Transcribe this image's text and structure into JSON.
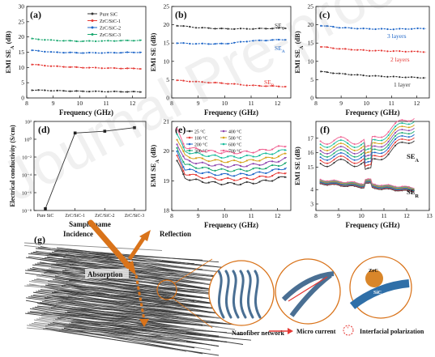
{
  "chart_data": [
    {
      "panel": "(a)",
      "type": "line",
      "xlabel": "Frequency (GHz)",
      "ylabel": "EMI SE_A (dB)",
      "xlim": [
        8,
        12.5
      ],
      "ylim": [
        0,
        30
      ],
      "xticks": [
        8,
        9,
        10,
        11,
        12
      ],
      "yticks": [
        0,
        5,
        10,
        15,
        20,
        25,
        30
      ],
      "legend": "top-right",
      "series": [
        {
          "name": "Pure SiC",
          "color": "#333333",
          "x": [
            8.2,
            9,
            10,
            11,
            12.4
          ],
          "values": [
            2.6,
            2.4,
            2.2,
            2.1,
            2.0
          ]
        },
        {
          "name": "ZrC/SiC-1",
          "color": "#e53935",
          "x": [
            8.2,
            9,
            10,
            11,
            12.4
          ],
          "values": [
            11.0,
            10.4,
            10.0,
            9.8,
            9.6
          ]
        },
        {
          "name": "ZrC/SiC-2",
          "color": "#1e66c8",
          "x": [
            8.2,
            9,
            10,
            11,
            12.4
          ],
          "values": [
            15.6,
            15.0,
            14.8,
            14.8,
            15.0
          ]
        },
        {
          "name": "ZrC/SiC-3",
          "color": "#1aa870",
          "x": [
            8.2,
            9,
            10,
            11,
            12.4
          ],
          "values": [
            19.4,
            18.9,
            18.6,
            18.7,
            18.9
          ]
        }
      ]
    },
    {
      "panel": "(b)",
      "type": "line",
      "xlabel": "Frequency (GHz)",
      "ylabel": "EMI SE (dB)",
      "xlim": [
        8,
        12.5
      ],
      "ylim": [
        0,
        25
      ],
      "xticks": [
        8,
        9,
        10,
        11,
        12
      ],
      "yticks": [
        0,
        5,
        10,
        15,
        20,
        25
      ],
      "series": [
        {
          "name": "SE_T",
          "color": "#333333",
          "x": [
            8.2,
            9,
            10,
            11,
            12.4
          ],
          "values": [
            19.8,
            19.2,
            18.9,
            18.9,
            19.1
          ]
        },
        {
          "name": "SE_A",
          "color": "#1e66c8",
          "x": [
            8.2,
            9,
            10,
            11,
            12.4
          ],
          "values": [
            15.0,
            14.8,
            14.8,
            15.6,
            16.0
          ]
        },
        {
          "name": "SE_R",
          "color": "#e53935",
          "x": [
            8.2,
            9,
            10,
            11,
            12.4
          ],
          "values": [
            4.8,
            4.4,
            4.0,
            3.4,
            3.1
          ]
        }
      ]
    },
    {
      "panel": "(c)",
      "type": "line",
      "xlabel": "Frequency (GHz)",
      "ylabel": "EMI SE_A (dB)",
      "xlim": [
        8,
        12.5
      ],
      "ylim": [
        0,
        25
      ],
      "xticks": [
        8,
        9,
        10,
        11,
        12
      ],
      "yticks": [
        0,
        5,
        10,
        15,
        20,
        25
      ],
      "series": [
        {
          "name": "3 layers",
          "color": "#1e66c8",
          "x": [
            8.2,
            9,
            10,
            11,
            12.4
          ],
          "values": [
            19.8,
            19.2,
            18.9,
            18.8,
            19.0
          ]
        },
        {
          "name": "2 layers",
          "color": "#e53935",
          "x": [
            8.2,
            9,
            10,
            11,
            12.4
          ],
          "values": [
            14.0,
            13.4,
            13.0,
            12.8,
            12.6
          ]
        },
        {
          "name": "1 layer",
          "color": "#333333",
          "x": [
            8.2,
            9,
            10,
            11,
            12.4
          ],
          "values": [
            7.2,
            6.6,
            6.1,
            5.8,
            5.5
          ]
        }
      ]
    },
    {
      "panel": "(d)",
      "type": "line",
      "xlabel": "Sample name",
      "ylabel": "Electrical conductivity (S/cm)",
      "categories": [
        "Pure SiC",
        "ZrC/SiC-1",
        "ZrC/SiC-2",
        "ZrC/SiC-3"
      ],
      "y_scale": "log",
      "ylim_exp": [
        -8,
        2
      ],
      "ytick_labels": [
        "10⁻⁸",
        "10⁻⁶",
        "10⁻⁴",
        "10⁻²",
        "10⁰",
        "10²"
      ],
      "series": [
        {
          "color": "#333333",
          "values_exp": [
            -7.8,
            0.7,
            0.9,
            1.3
          ]
        }
      ]
    },
    {
      "panel": "(e)",
      "type": "line",
      "xlabel": "Frequency (GHz)",
      "ylabel": "EMI SE_A (dB)",
      "xlim": [
        8,
        12.5
      ],
      "ylim": [
        18,
        21
      ],
      "xticks": [
        8,
        9,
        10,
        11,
        12
      ],
      "yticks": [
        18,
        19,
        20,
        21
      ],
      "legend": "top-left",
      "series": [
        {
          "name": "25 °C",
          "color": "#333333",
          "base": 18.8
        },
        {
          "name": "100 °C",
          "color": "#e53935",
          "base": 18.95
        },
        {
          "name": "200 °C",
          "color": "#1e66c8",
          "base": 19.1
        },
        {
          "name": "300 °C",
          "color": "#1aa870",
          "base": 19.25
        },
        {
          "name": "400 °C",
          "color": "#8e44ad",
          "base": 19.4
        },
        {
          "name": "500 °C",
          "color": "#d4a017",
          "base": 19.55
        },
        {
          "name": "600 °C",
          "color": "#1abc9c",
          "base": 19.7
        },
        {
          "name": "700 °C",
          "color": "#f06292",
          "base": 19.85
        }
      ]
    },
    {
      "panel": "(f)",
      "type": "line",
      "xlabel": "Frequency (GHz)",
      "ylabel": "EMI SE (dB)",
      "xlim": [
        8,
        13
      ],
      "xticks": [
        8,
        9,
        10,
        11,
        12,
        13
      ],
      "ytick_labels_top": [
        "15",
        "16",
        "17"
      ],
      "ytick_labels_bottom": [
        "3",
        "4"
      ],
      "annotations": [
        "SE_A",
        "SE_R"
      ]
    }
  ],
  "figure": {
    "panel_labels": [
      "(a)",
      "(b)",
      "(c)",
      "(d)",
      "(e)",
      "(f)",
      "(g)"
    ],
    "schematic": {
      "incidence": "Incidence",
      "reflection": "Reflection",
      "absorption": "Absorption",
      "nanofiber_network": "Nanofiber network",
      "micro_current": "Micro current",
      "interfacial_polarization": "Interfacial polarization",
      "zrc": "ZrC",
      "sic": "SiC"
    },
    "watermark": "Journal Pre-proof"
  },
  "colors": {
    "black": "#333333",
    "red": "#e53935",
    "blue": "#1e66c8",
    "green": "#1aa870",
    "orange": "#d9731a",
    "fiber": "#4a6f93"
  }
}
